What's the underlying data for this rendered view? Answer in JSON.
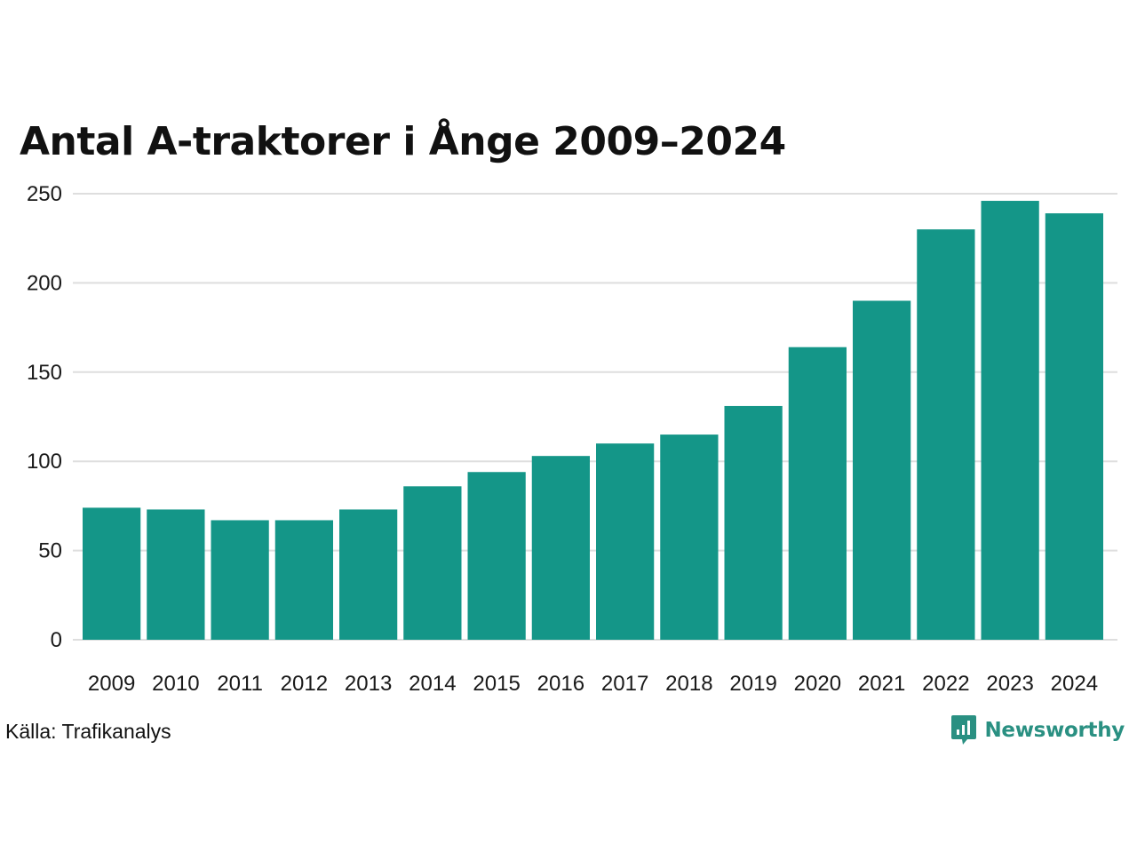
{
  "title": "Antal A-traktorer i Ånge 2009–2024",
  "source": "Källa: Trafikanalys",
  "brand": {
    "name": "Newsworthy",
    "icon": "newsworthy-logo-icon",
    "color": "#2a9082"
  },
  "colors": {
    "bar": "#149688",
    "grid": "#dedede"
  },
  "chart_data": {
    "type": "bar",
    "title": "Antal A-traktorer i Ånge 2009–2024",
    "xlabel": "",
    "ylabel": "",
    "categories": [
      "2009",
      "2010",
      "2011",
      "2012",
      "2013",
      "2014",
      "2015",
      "2016",
      "2017",
      "2018",
      "2019",
      "2020",
      "2021",
      "2022",
      "2023",
      "2024"
    ],
    "values": [
      74,
      73,
      67,
      67,
      73,
      86,
      94,
      103,
      110,
      115,
      131,
      164,
      190,
      230,
      246,
      239
    ],
    "ylim": [
      0,
      250
    ],
    "yticks": [
      0,
      50,
      100,
      150,
      200,
      250
    ],
    "grid": true,
    "legend": "none"
  }
}
